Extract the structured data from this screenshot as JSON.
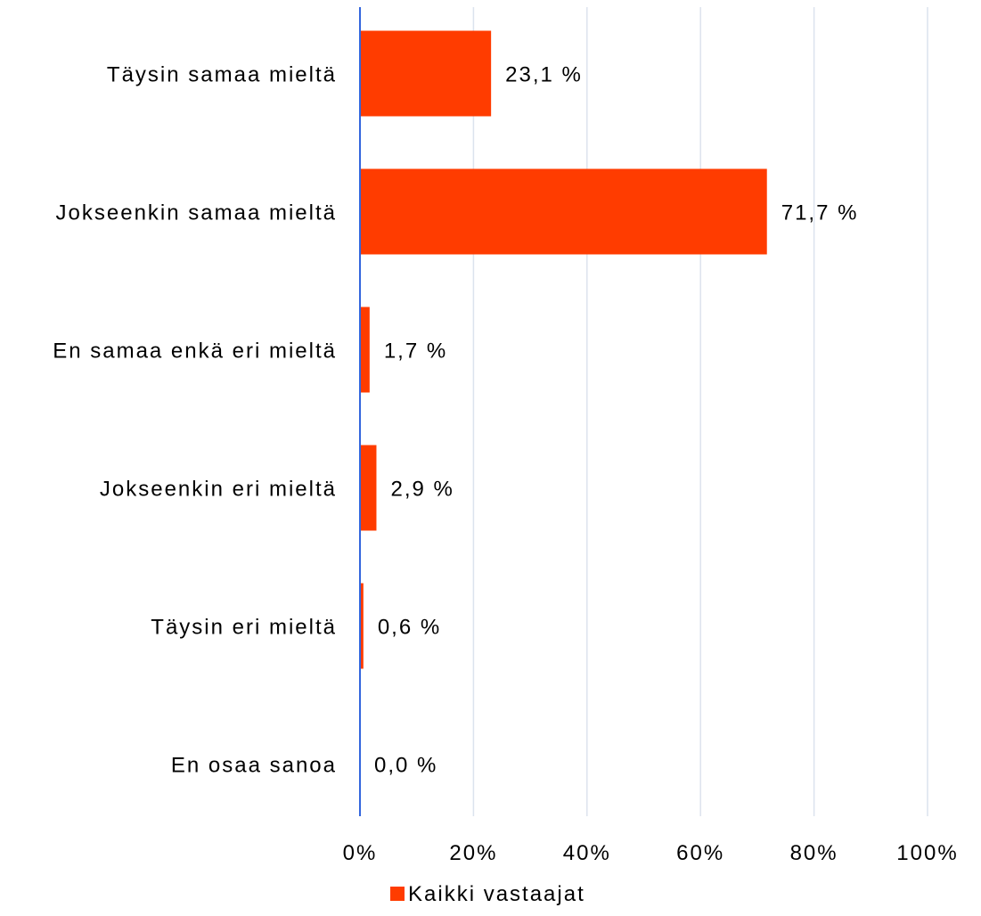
{
  "chart_data": {
    "type": "bar",
    "orientation": "horizontal",
    "categories": [
      "Täysin samaa mieltä",
      "Jokseenkin samaa mieltä",
      "En samaa enkä eri mieltä",
      "Jokseenkin eri mieltä",
      "Täysin eri mieltä",
      "En osaa sanoa"
    ],
    "series": [
      {
        "name": "Kaikki vastaajat",
        "values": [
          23.1,
          71.7,
          1.7,
          2.9,
          0.6,
          0.0
        ],
        "labels": [
          "23,1 %",
          "71,7 %",
          "1,7 %",
          "2,9 %",
          "0,6 %",
          "0,0 %"
        ],
        "color": "#ff3c00"
      }
    ],
    "xlim": [
      0,
      100
    ],
    "xticks": [
      0,
      20,
      40,
      60,
      80,
      100
    ],
    "xtick_labels": [
      "0%",
      "20%",
      "40%",
      "60%",
      "80%",
      "100%"
    ],
    "grid": "vertical",
    "gridColor": "#dce3ee",
    "axisColor": "#3366dd",
    "legend": "bottom-center"
  }
}
